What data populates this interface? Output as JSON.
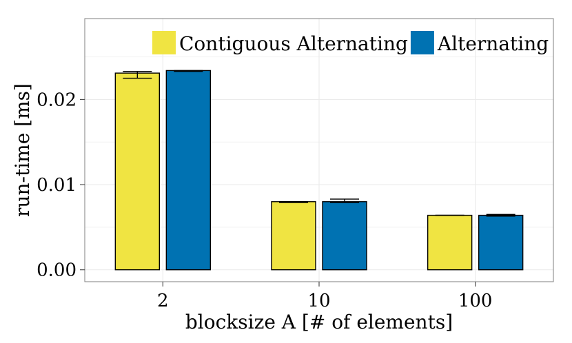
{
  "chart_data": {
    "type": "bar",
    "title": "",
    "xlabel": "blocksize A [# of elements]",
    "ylabel": "run-time [ms]",
    "categories": [
      "2",
      "10",
      "100"
    ],
    "ylim": [
      -0.0014,
      0.0295
    ],
    "yticks": [
      0.0,
      0.01,
      0.02
    ],
    "ytick_labels": [
      "0.00",
      "0.01",
      "0.02"
    ],
    "grid": true,
    "legend_position": "top-right",
    "series": [
      {
        "name": "Contiguous Alternating",
        "color": "#F0E442",
        "values": [
          0.0231,
          0.008,
          0.0064
        ],
        "err_low": [
          0.0225,
          0.0079,
          0.0064
        ],
        "err_high": [
          0.0233,
          0.008,
          0.0064
        ]
      },
      {
        "name": "Alternating",
        "color": "#0072B2",
        "values": [
          0.0234,
          0.008,
          0.0064
        ],
        "err_low": [
          0.0233,
          0.0079,
          0.0063
        ],
        "err_high": [
          0.0234,
          0.0083,
          0.0065
        ]
      }
    ]
  }
}
